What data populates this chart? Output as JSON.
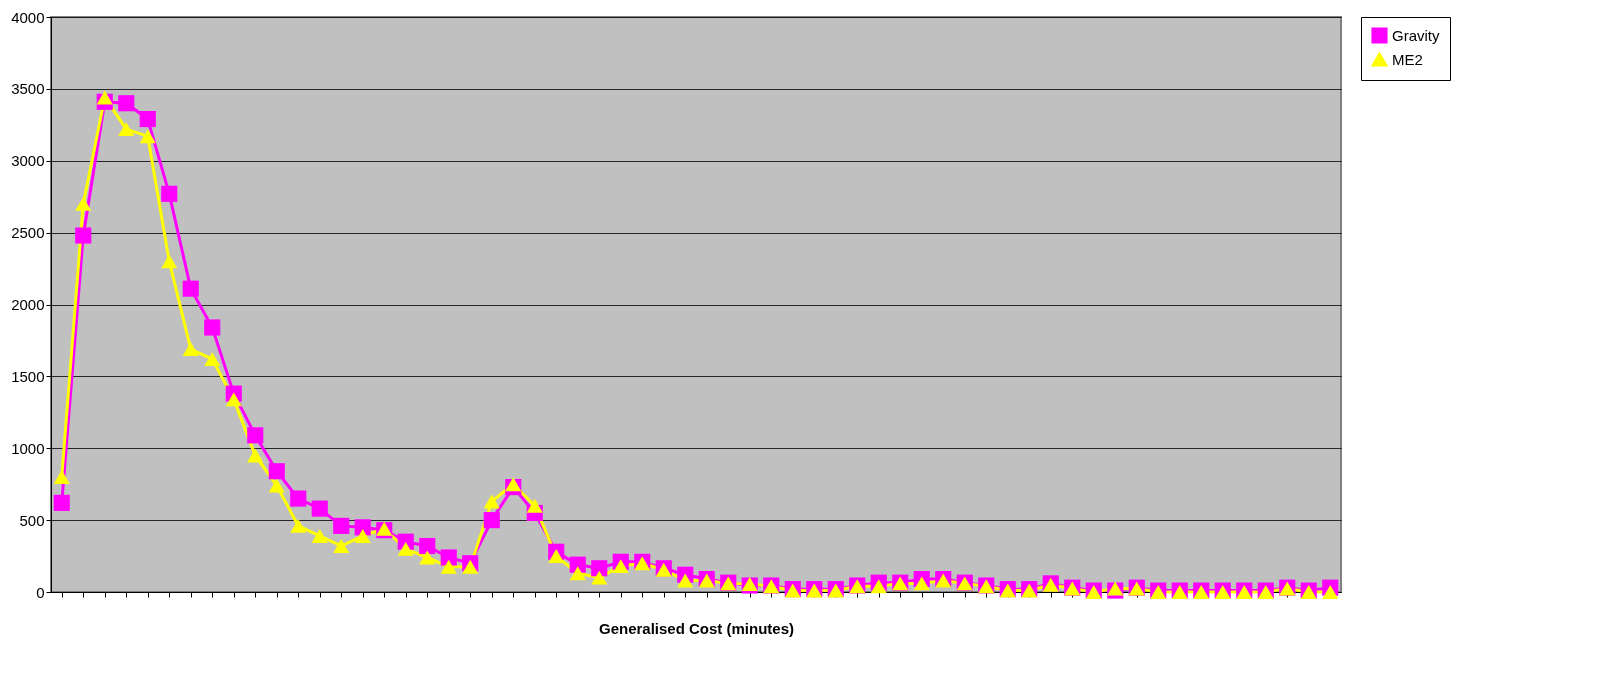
{
  "chart_data": {
    "type": "line",
    "xlabel": "Generalised Cost (minutes)",
    "categories": [
      null,
      null,
      null,
      null,
      null,
      null,
      null,
      null,
      null,
      null,
      null,
      null,
      null,
      null,
      null,
      null,
      null,
      null,
      null,
      null,
      null,
      null,
      null,
      null,
      null,
      null,
      null,
      null,
      null,
      null,
      null,
      null,
      null,
      null,
      null,
      null,
      null,
      null,
      null,
      null,
      null,
      null,
      null,
      null,
      null,
      null,
      null,
      null,
      null,
      null,
      null,
      null,
      null,
      null,
      null,
      null,
      null,
      null,
      null,
      null
    ],
    "series": [
      {
        "name": "Gravity",
        "color": "#ff00ff",
        "marker": "square",
        "values": [
          620,
          2480,
          3410,
          3400,
          3290,
          2770,
          2110,
          1840,
          1380,
          1090,
          840,
          650,
          580,
          460,
          450,
          430,
          350,
          320,
          240,
          200,
          500,
          730,
          550,
          280,
          190,
          165,
          210,
          210,
          165,
          120,
          90,
          65,
          45,
          45,
          20,
          20,
          20,
          45,
          65,
          65,
          90,
          90,
          65,
          45,
          20,
          20,
          60,
          30,
          10,
          10,
          30,
          10,
          10,
          10,
          10,
          10,
          10,
          30,
          10,
          30
        ]
      },
      {
        "name": "ME2",
        "color": "#ffff00",
        "marker": "triangle",
        "values": [
          800,
          2700,
          3440,
          3220,
          3170,
          2300,
          1690,
          1620,
          1340,
          950,
          740,
          460,
          390,
          320,
          390,
          440,
          300,
          240,
          175,
          175,
          630,
          750,
          600,
          250,
          130,
          100,
          180,
          200,
          155,
          80,
          80,
          60,
          55,
          40,
          10,
          10,
          10,
          40,
          40,
          60,
          60,
          80,
          60,
          40,
          10,
          10,
          50,
          25,
          0,
          25,
          25,
          0,
          0,
          0,
          0,
          0,
          0,
          25,
          0,
          0
        ]
      }
    ],
    "ylim": [
      0,
      4000
    ],
    "yticks": [
      0,
      500,
      1000,
      1500,
      2000,
      2500,
      3000,
      3500,
      4000
    ],
    "grid": "y",
    "legend": "right",
    "line_style": "solid"
  }
}
